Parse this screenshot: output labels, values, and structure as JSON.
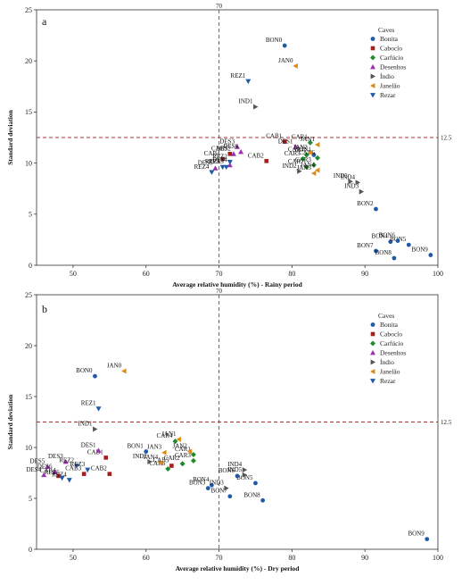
{
  "chart_data": [
    {
      "type": "scatter",
      "panel": "a",
      "xlabel": "Average relative humidity (%) - Rainy period",
      "ylabel": "Standard deviation",
      "xlim": [
        45,
        100
      ],
      "ylim": [
        0,
        25
      ],
      "xticks": [
        50,
        60,
        70,
        80,
        90,
        100
      ],
      "yticks": [
        0,
        5,
        10,
        15,
        20,
        25
      ],
      "ref_x": 70,
      "ref_y": 12.5,
      "ref_x_label": "70",
      "ref_y_label": "12.5",
      "legend_title": "Caves",
      "legend_position": "top-right",
      "series": [
        {
          "name": "Bonita",
          "marker": "circle",
          "color": "#1f5aa6",
          "points": [
            {
              "label": "BON0",
              "x": 79.0,
              "y": 21.5
            },
            {
              "label": "BON1",
              "x": 83.0,
              "y": 10.8
            },
            {
              "label": "BON2",
              "x": 91.5,
              "y": 5.5
            },
            {
              "label": "BON4",
              "x": 93.5,
              "y": 2.3
            },
            {
              "label": "BON5",
              "x": 96.0,
              "y": 2.0
            },
            {
              "label": "BON6",
              "x": 94.5,
              "y": 2.4
            },
            {
              "label": "BON7",
              "x": 91.5,
              "y": 1.4
            },
            {
              "label": "BON8",
              "x": 94.0,
              "y": 0.7
            },
            {
              "label": "BON9",
              "x": 99.0,
              "y": 1.0
            }
          ]
        },
        {
          "name": "Caboclo",
          "marker": "square",
          "color": "#a32020",
          "points": [
            {
              "label": "CAB1",
              "x": 79.0,
              "y": 12.1
            },
            {
              "label": "CAB2",
              "x": 76.5,
              "y": 10.2
            },
            {
              "label": "CAB3",
              "x": 71.5,
              "y": 10.9
            },
            {
              "label": "CAB4",
              "x": 70.5,
              "y": 10.4
            }
          ]
        },
        {
          "name": "Carfúcio",
          "marker": "diamond",
          "color": "#1e8a2e",
          "points": [
            {
              "label": "CAR1",
              "x": 82.5,
              "y": 12.0
            },
            {
              "label": "CAR3",
              "x": 83.0,
              "y": 9.8
            },
            {
              "label": "CAR4",
              "x": 82.0,
              "y": 10.8
            },
            {
              "label": "CAR5",
              "x": 81.5,
              "y": 10.4
            },
            {
              "label": "CAR6",
              "x": 83.5,
              "y": 10.5
            },
            {
              "label": "CAR7",
              "x": 82.0,
              "y": 9.6
            }
          ]
        },
        {
          "name": "Desenhos",
          "marker": "triangle-up",
          "color": "#9b2fae",
          "points": [
            {
              "label": "DES1",
              "x": 80.5,
              "y": 11.6
            },
            {
              "label": "DES2",
              "x": 72.0,
              "y": 10.9
            },
            {
              "label": "DES3",
              "x": 72.5,
              "y": 11.6
            },
            {
              "label": "DES4",
              "x": 71.5,
              "y": 9.8
            },
            {
              "label": "DES5",
              "x": 69.5,
              "y": 9.5
            },
            {
              "label": "DES6",
              "x": 73.0,
              "y": 11.1
            }
          ]
        },
        {
          "name": "Índio",
          "marker": "triangle-right",
          "color": "#555555",
          "points": [
            {
              "label": "IND1",
              "x": 75.0,
              "y": 15.5
            },
            {
              "label": "IND2",
              "x": 81.0,
              "y": 9.2
            },
            {
              "label": "IND3",
              "x": 89.5,
              "y": 7.2
            },
            {
              "label": "IND4",
              "x": 89.0,
              "y": 8.1
            },
            {
              "label": "IND5",
              "x": 88.0,
              "y": 8.2
            }
          ]
        },
        {
          "name": "Janelão",
          "marker": "triangle-left",
          "color": "#e08a10",
          "points": [
            {
              "label": "JAN0",
              "x": 80.5,
              "y": 19.5
            },
            {
              "label": "JAN1",
              "x": 83.5,
              "y": 11.8
            },
            {
              "label": "JAN2",
              "x": 82.5,
              "y": 11.0
            },
            {
              "label": "JAN3",
              "x": 83.0,
              "y": 9.0
            },
            {
              "label": "JAN4",
              "x": 83.5,
              "y": 9.3
            }
          ]
        },
        {
          "name": "Rezar",
          "marker": "triangle-down",
          "color": "#1f5aa6",
          "points": [
            {
              "label": "REZ1",
              "x": 74.0,
              "y": 18.0
            },
            {
              "label": "REZ2",
              "x": 71.5,
              "y": 10.1
            },
            {
              "label": "REZ3",
              "x": 71.0,
              "y": 9.6
            },
            {
              "label": "REZ4",
              "x": 69.0,
              "y": 9.1
            },
            {
              "label": "REZ5",
              "x": 70.5,
              "y": 9.6
            }
          ]
        }
      ]
    },
    {
      "type": "scatter",
      "panel": "b",
      "xlabel": "Average relative humidity (%) - Dry period",
      "ylabel": "Standard deviation",
      "xlim": [
        45,
        100
      ],
      "ylim": [
        0,
        25
      ],
      "xticks": [
        50,
        60,
        70,
        80,
        90,
        100
      ],
      "yticks": [
        0,
        5,
        10,
        15,
        20,
        25
      ],
      "ref_x": 70,
      "ref_y": 12.5,
      "ref_x_label": "70",
      "ref_y_label": "12.5",
      "legend_title": "Caves",
      "legend_position": "top-right",
      "series": [
        {
          "name": "Bonita",
          "marker": "circle",
          "color": "#1f5aa6",
          "points": [
            {
              "label": "BON0",
              "x": 53.0,
              "y": 17.0
            },
            {
              "label": "BON1",
              "x": 60.0,
              "y": 9.6
            },
            {
              "label": "BON3",
              "x": 68.5,
              "y": 6.0
            },
            {
              "label": "BON4",
              "x": 69.0,
              "y": 6.3
            },
            {
              "label": "BON5",
              "x": 75.0,
              "y": 6.5
            },
            {
              "label": "BON6",
              "x": 72.5,
              "y": 7.2
            },
            {
              "label": "BON7",
              "x": 71.5,
              "y": 5.2
            },
            {
              "label": "BON8",
              "x": 76.0,
              "y": 4.8
            },
            {
              "label": "BON9",
              "x": 98.5,
              "y": 1.0
            }
          ]
        },
        {
          "name": "Caboclo",
          "marker": "square",
          "color": "#a32020",
          "points": [
            {
              "label": "CAB1",
              "x": 54.5,
              "y": 9.0
            },
            {
              "label": "CAB2",
              "x": 55.0,
              "y": 7.4
            },
            {
              "label": "CAB3",
              "x": 51.5,
              "y": 7.4
            },
            {
              "label": "CAB4",
              "x": 48.0,
              "y": 7.2
            },
            {
              "label": "CAB5",
              "x": 63.5,
              "y": 8.2
            }
          ]
        },
        {
          "name": "Carfúcio",
          "marker": "diamond",
          "color": "#1e8a2e",
          "points": [
            {
              "label": "CAR1",
              "x": 66.5,
              "y": 9.3
            },
            {
              "label": "CAR2",
              "x": 65.0,
              "y": 8.4
            },
            {
              "label": "CAR3",
              "x": 66.5,
              "y": 8.7
            },
            {
              "label": "CAR4",
              "x": 64.0,
              "y": 10.6
            },
            {
              "label": "CAR6",
              "x": 63.0,
              "y": 7.9
            }
          ]
        },
        {
          "name": "Desenhos",
          "marker": "triangle-up",
          "color": "#9b2fae",
          "points": [
            {
              "label": "DES1",
              "x": 53.5,
              "y": 9.7
            },
            {
              "label": "DES3",
              "x": 49.0,
              "y": 8.6
            },
            {
              "label": "DES4",
              "x": 46.0,
              "y": 7.3
            },
            {
              "label": "DES5",
              "x": 46.5,
              "y": 8.1
            },
            {
              "label": "DES6",
              "x": 47.5,
              "y": 7.6
            }
          ]
        },
        {
          "name": "Índio",
          "marker": "triangle-right",
          "color": "#555555",
          "points": [
            {
              "label": "IND1",
              "x": 53.0,
              "y": 11.8
            },
            {
              "label": "IND2",
              "x": 60.5,
              "y": 8.6
            },
            {
              "label": "IND3",
              "x": 71.0,
              "y": 6.0
            },
            {
              "label": "IND4",
              "x": 73.5,
              "y": 7.8
            },
            {
              "label": "IND5",
              "x": 73.5,
              "y": 7.3
            }
          ]
        },
        {
          "name": "Janelão",
          "marker": "triangle-left",
          "color": "#e08a10",
          "points": [
            {
              "label": "JAN0",
              "x": 57.0,
              "y": 17.5
            },
            {
              "label": "JAN1",
              "x": 64.5,
              "y": 10.8
            },
            {
              "label": "JAN2",
              "x": 66.0,
              "y": 9.6
            },
            {
              "label": "JAN3",
              "x": 62.5,
              "y": 9.5
            },
            {
              "label": "JAN4",
              "x": 62.0,
              "y": 8.5
            }
          ]
        },
        {
          "name": "Rezar",
          "marker": "triangle-down",
          "color": "#1f5aa6",
          "points": [
            {
              "label": "REZ1",
              "x": 53.5,
              "y": 13.8
            },
            {
              "label": "REZ2",
              "x": 50.5,
              "y": 8.2
            },
            {
              "label": "REZ3",
              "x": 52.0,
              "y": 7.8
            },
            {
              "label": "REZ4",
              "x": 49.5,
              "y": 6.8
            },
            {
              "label": "REZ5",
              "x": 48.5,
              "y": 7.0
            }
          ]
        }
      ]
    }
  ]
}
